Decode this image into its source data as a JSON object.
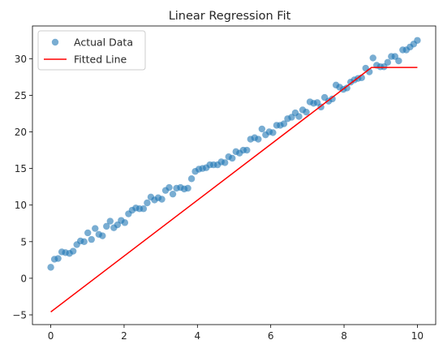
{
  "chart_data": {
    "type": "scatter",
    "title": "Linear Regression Fit",
    "xlabel": "",
    "ylabel": "",
    "xlim": [
      -0.5,
      10.5
    ],
    "ylim": [
      -6.33,
      34.47
    ],
    "xticks": [
      0,
      2,
      4,
      6,
      8,
      10
    ],
    "yticks": [
      -5,
      0,
      5,
      10,
      15,
      20,
      25,
      30
    ],
    "grid": false,
    "legend_position": "top-left",
    "series": [
      {
        "name": "Actual Data",
        "kind": "scatter",
        "color": "#1f77b4",
        "points": [
          [
            0.0,
            1.5
          ],
          [
            0.1,
            2.6
          ],
          [
            0.2,
            2.7
          ],
          [
            0.3,
            3.6
          ],
          [
            0.4,
            3.5
          ],
          [
            0.51,
            3.4
          ],
          [
            0.61,
            3.7
          ],
          [
            0.71,
            4.6
          ],
          [
            0.81,
            5.1
          ],
          [
            0.91,
            5.0
          ],
          [
            1.01,
            6.2
          ],
          [
            1.11,
            5.3
          ],
          [
            1.21,
            6.8
          ],
          [
            1.31,
            6.0
          ],
          [
            1.41,
            5.8
          ],
          [
            1.52,
            7.1
          ],
          [
            1.62,
            7.8
          ],
          [
            1.72,
            6.9
          ],
          [
            1.82,
            7.3
          ],
          [
            1.92,
            7.9
          ],
          [
            2.02,
            7.6
          ],
          [
            2.12,
            8.8
          ],
          [
            2.22,
            9.3
          ],
          [
            2.32,
            9.6
          ],
          [
            2.42,
            9.5
          ],
          [
            2.53,
            9.5
          ],
          [
            2.63,
            10.3
          ],
          [
            2.73,
            11.1
          ],
          [
            2.83,
            10.7
          ],
          [
            2.93,
            11.0
          ],
          [
            3.03,
            10.8
          ],
          [
            3.13,
            12.0
          ],
          [
            3.23,
            12.4
          ],
          [
            3.33,
            11.5
          ],
          [
            3.43,
            12.3
          ],
          [
            3.54,
            12.4
          ],
          [
            3.64,
            12.2
          ],
          [
            3.74,
            12.3
          ],
          [
            3.84,
            13.6
          ],
          [
            3.94,
            14.6
          ],
          [
            4.04,
            14.9
          ],
          [
            4.14,
            15.0
          ],
          [
            4.24,
            15.1
          ],
          [
            4.34,
            15.5
          ],
          [
            4.44,
            15.5
          ],
          [
            4.55,
            15.5
          ],
          [
            4.65,
            15.9
          ],
          [
            4.75,
            15.8
          ],
          [
            4.85,
            16.6
          ],
          [
            4.95,
            16.4
          ],
          [
            5.05,
            17.3
          ],
          [
            5.15,
            17.1
          ],
          [
            5.25,
            17.5
          ],
          [
            5.35,
            17.5
          ],
          [
            5.45,
            19.0
          ],
          [
            5.56,
            19.2
          ],
          [
            5.66,
            19.0
          ],
          [
            5.76,
            20.4
          ],
          [
            5.86,
            19.6
          ],
          [
            5.96,
            20.0
          ],
          [
            6.06,
            19.9
          ],
          [
            6.16,
            20.9
          ],
          [
            6.26,
            20.9
          ],
          [
            6.36,
            21.1
          ],
          [
            6.46,
            21.8
          ],
          [
            6.57,
            22.0
          ],
          [
            6.67,
            22.6
          ],
          [
            6.77,
            22.1
          ],
          [
            6.87,
            23.0
          ],
          [
            6.97,
            22.7
          ],
          [
            7.07,
            24.1
          ],
          [
            7.17,
            23.9
          ],
          [
            7.27,
            24.0
          ],
          [
            7.37,
            23.4
          ],
          [
            7.47,
            24.7
          ],
          [
            7.58,
            24.2
          ],
          [
            7.68,
            24.5
          ],
          [
            7.78,
            26.4
          ],
          [
            7.88,
            26.1
          ],
          [
            7.98,
            25.8
          ],
          [
            8.08,
            26.0
          ],
          [
            8.18,
            26.8
          ],
          [
            8.28,
            27.1
          ],
          [
            8.38,
            27.3
          ],
          [
            8.48,
            27.4
          ],
          [
            8.59,
            28.7
          ],
          [
            8.69,
            28.2
          ],
          [
            8.79,
            30.1
          ],
          [
            8.89,
            29.1
          ],
          [
            8.99,
            28.9
          ],
          [
            9.09,
            28.9
          ],
          [
            9.19,
            29.5
          ],
          [
            9.29,
            30.3
          ],
          [
            9.39,
            30.3
          ],
          [
            9.49,
            29.7
          ],
          [
            9.6,
            31.2
          ],
          [
            9.7,
            31.2
          ],
          [
            9.8,
            31.6
          ],
          [
            9.9,
            32.0
          ],
          [
            10.0,
            32.5
          ]
        ]
      },
      {
        "name": "Fitted Line",
        "kind": "line",
        "color": "#ff0000",
        "points": [
          [
            0,
            -4.6
          ],
          [
            8.75,
            28.8
          ],
          [
            10,
            28.8
          ]
        ]
      }
    ]
  }
}
